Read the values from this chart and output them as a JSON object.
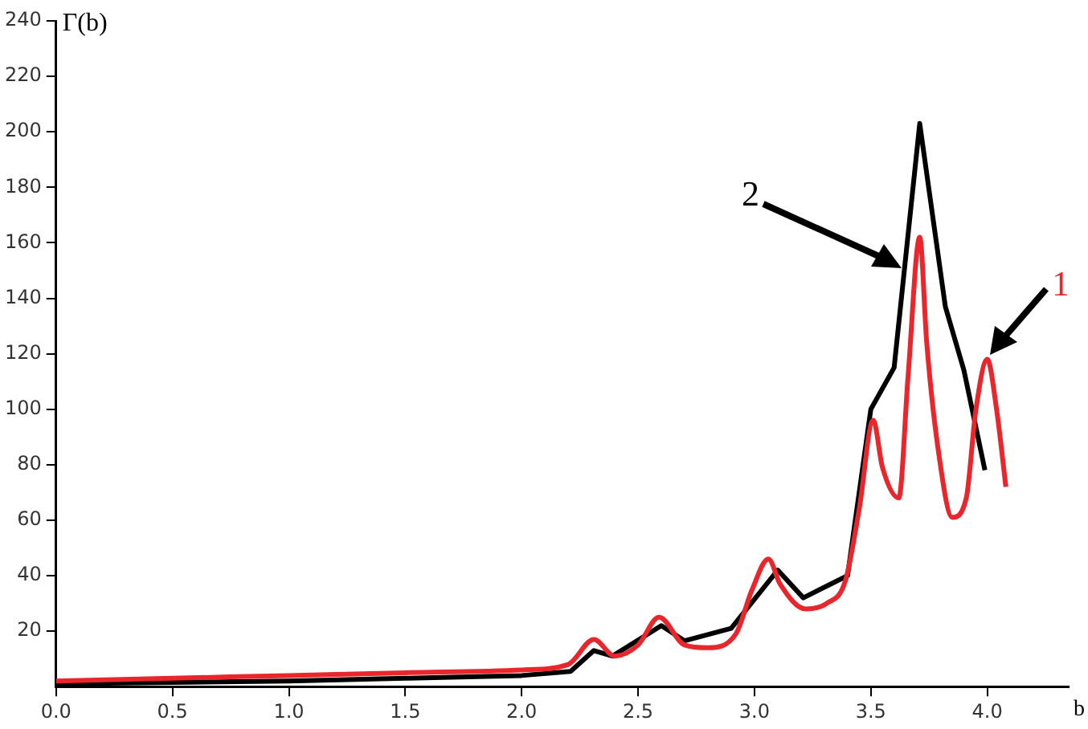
{
  "chart_data": {
    "type": "line",
    "xlabel": "b",
    "ylabel": "Γ(b)",
    "xlim": [
      0,
      4.35
    ],
    "xticks": [
      {
        "value": 0,
        "label": "0.0"
      },
      {
        "value": 0.5,
        "label": "0.5"
      },
      {
        "value": 1,
        "label": "1.0"
      },
      {
        "value": 1.5,
        "label": "1.5"
      },
      {
        "value": 2,
        "label": "2.0"
      },
      {
        "value": 2.5,
        "label": "2.5"
      },
      {
        "value": 3,
        "label": "3.0"
      },
      {
        "value": 3.5,
        "label": "3.5"
      },
      {
        "value": 4,
        "label": "4.0"
      }
    ],
    "ylim": [
      0,
      240
    ],
    "yticks": [
      20,
      40,
      60,
      80,
      100,
      120,
      140,
      160,
      180,
      200,
      220,
      240
    ],
    "grid": false,
    "legend": false,
    "marker": "none",
    "line_style": "solid",
    "series": [
      {
        "name": "1",
        "color": "#e8262b",
        "x": [
          0,
          0.5,
          1,
          1.5,
          2,
          2.2,
          2.31,
          2.4,
          2.5,
          2.59,
          2.7,
          2.8,
          2.92,
          2.99,
          3.06,
          3.11,
          3.22,
          3.31,
          3.39,
          3.45,
          3.51,
          3.55,
          3.62,
          3.66,
          3.71,
          3.74,
          3.79,
          3.85,
          3.91,
          3.95,
          4,
          4.04,
          4.08
        ],
        "values": [
          2,
          3,
          4,
          5,
          6,
          8,
          17,
          11,
          15,
          25,
          15,
          14,
          19,
          35,
          46,
          37,
          28,
          30,
          38,
          64,
          96,
          79,
          68,
          112,
          162,
          124,
          85,
          61,
          68,
          99,
          118,
          100,
          72
        ]
      },
      {
        "name": "2",
        "color": "#000000",
        "x": [
          0,
          0.5,
          1,
          1.5,
          2,
          2.21,
          2.31,
          2.39,
          2.6,
          2.7,
          2.9,
          3.1,
          3.21,
          3.4,
          3.5,
          3.6,
          3.71,
          3.82,
          3.9,
          3.99
        ],
        "values": [
          1,
          1.5,
          2,
          3,
          4,
          5.5,
          13,
          11,
          22,
          16.5,
          21,
          42,
          32,
          40,
          100,
          115,
          203,
          137,
          114,
          78
        ]
      }
    ]
  }
}
